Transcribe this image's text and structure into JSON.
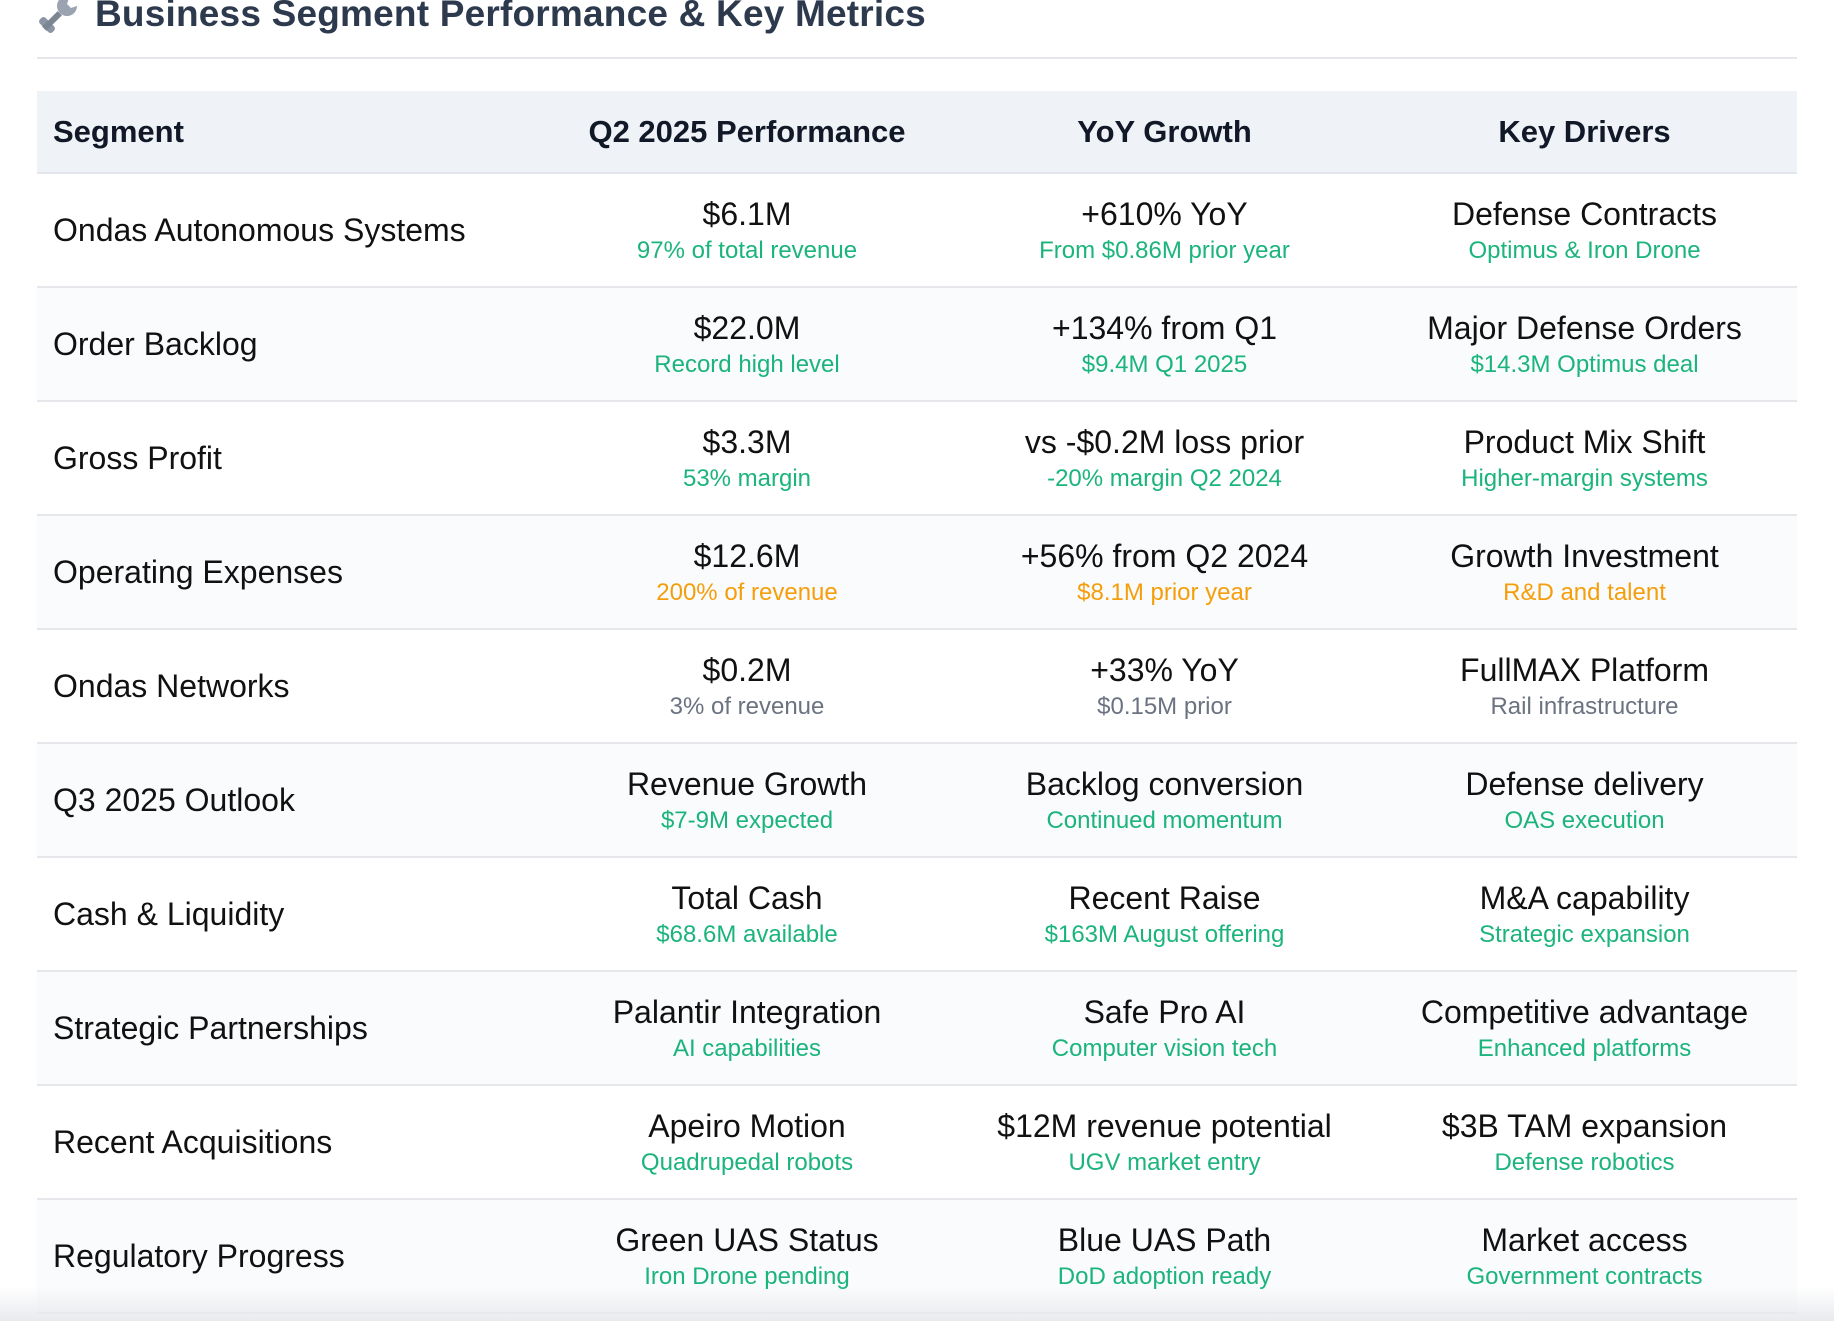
{
  "header": {
    "title": "Business Segment Performance & Key Metrics",
    "icon": "wrench-icon"
  },
  "table": {
    "columns": [
      "Segment",
      "Q2 2025 Performance",
      "YoY Growth",
      "Key Drivers"
    ],
    "rows": [
      {
        "segment": "Ondas Autonomous Systems",
        "perf": {
          "main": "$6.1M",
          "sub": "97% of total revenue"
        },
        "yoy": {
          "main": "+610% YoY",
          "sub": "From $0.86M prior year"
        },
        "key": {
          "main": "Defense Contracts",
          "sub": "Optimus & Iron Drone"
        },
        "sub_color": "green"
      },
      {
        "segment": "Order Backlog",
        "perf": {
          "main": "$22.0M",
          "sub": "Record high level"
        },
        "yoy": {
          "main": "+134% from Q1",
          "sub": "$9.4M Q1 2025"
        },
        "key": {
          "main": "Major Defense Orders",
          "sub": "$14.3M Optimus deal"
        },
        "sub_color": "green"
      },
      {
        "segment": "Gross Profit",
        "perf": {
          "main": "$3.3M",
          "sub": "53% margin"
        },
        "yoy": {
          "main": "vs -$0.2M loss prior",
          "sub": "-20% margin Q2 2024"
        },
        "key": {
          "main": "Product Mix Shift",
          "sub": "Higher-margin systems"
        },
        "sub_color": "green"
      },
      {
        "segment": "Operating Expenses",
        "perf": {
          "main": "$12.6M",
          "sub": "200% of revenue"
        },
        "yoy": {
          "main": "+56% from Q2 2024",
          "sub": "$8.1M prior year"
        },
        "key": {
          "main": "Growth Investment",
          "sub": "R&D and talent"
        },
        "sub_color": "orange"
      },
      {
        "segment": "Ondas Networks",
        "perf": {
          "main": "$0.2M",
          "sub": "3% of revenue"
        },
        "yoy": {
          "main": "+33% YoY",
          "sub": "$0.15M prior"
        },
        "key": {
          "main": "FullMAX Platform",
          "sub": "Rail infrastructure"
        },
        "sub_color": "gray"
      },
      {
        "segment": "Q3 2025 Outlook",
        "perf": {
          "main": "Revenue Growth",
          "sub": "$7-9M expected"
        },
        "yoy": {
          "main": "Backlog conversion",
          "sub": "Continued momentum"
        },
        "key": {
          "main": "Defense delivery",
          "sub": "OAS execution"
        },
        "sub_color": "green"
      },
      {
        "segment": "Cash & Liquidity",
        "perf": {
          "main": "Total Cash",
          "sub": "$68.6M available"
        },
        "yoy": {
          "main": "Recent Raise",
          "sub": "$163M August offering"
        },
        "key": {
          "main": "M&A capability",
          "sub": "Strategic expansion"
        },
        "sub_color": "green"
      },
      {
        "segment": "Strategic Partnerships",
        "perf": {
          "main": "Palantir Integration",
          "sub": "AI capabilities"
        },
        "yoy": {
          "main": "Safe Pro AI",
          "sub": "Computer vision tech"
        },
        "key": {
          "main": "Competitive advantage",
          "sub": "Enhanced platforms"
        },
        "sub_color": "green"
      },
      {
        "segment": "Recent Acquisitions",
        "perf": {
          "main": "Apeiro Motion",
          "sub": "Quadrupedal robots"
        },
        "yoy": {
          "main": "$12M revenue potential",
          "sub": "UGV market entry"
        },
        "key": {
          "main": "$3B TAM expansion",
          "sub": "Defense robotics"
        },
        "sub_color": "green"
      },
      {
        "segment": "Regulatory Progress",
        "perf": {
          "main": "Green UAS Status",
          "sub": "Iron Drone pending"
        },
        "yoy": {
          "main": "Blue UAS Path",
          "sub": "DoD adoption ready"
        },
        "key": {
          "main": "Market access",
          "sub": "Government contracts"
        },
        "sub_color": "green"
      }
    ]
  },
  "colors": {
    "green": "#1bb47c",
    "orange": "#f59e0b",
    "gray": "#6b7280",
    "header_bg": "#eff2f6",
    "title": "#2d3a4e"
  }
}
